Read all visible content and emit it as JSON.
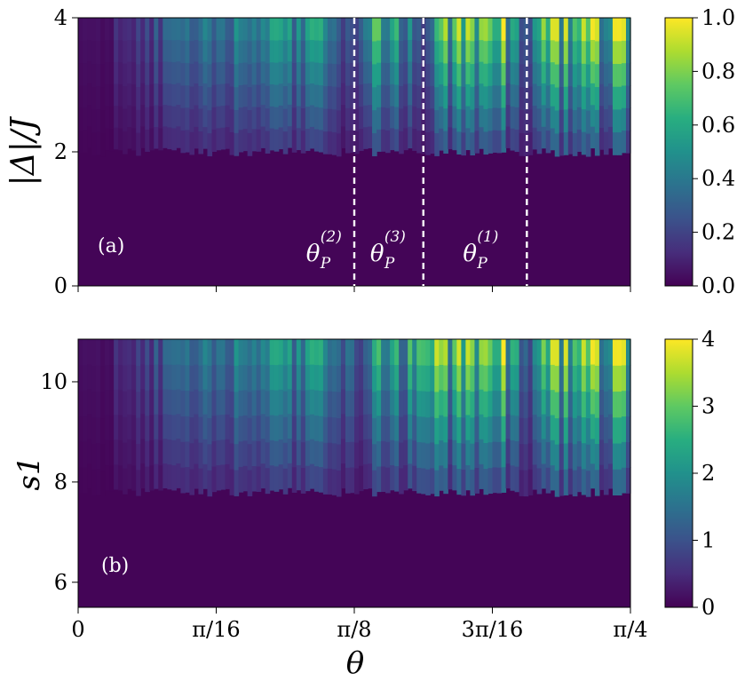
{
  "chart_data": [
    {
      "type": "heatmap",
      "panel_label": "(a)",
      "xlabel": "",
      "ylabel": "|Δ|/J",
      "xlim": [
        0,
        0.7854
      ],
      "ylim": [
        0,
        4
      ],
      "ytick_labels": [
        "0",
        "2",
        "4"
      ],
      "colorbar": {
        "range": [
          0.0,
          1.0
        ],
        "tick_labels": [
          "0.0",
          "0.2",
          "0.4",
          "0.6",
          "0.8",
          "1.0"
        ]
      },
      "colormap": "viridis",
      "dashed_lines_x": [
        0.3927,
        0.4909,
        0.6381
      ],
      "annotations": [
        {
          "base": "θ",
          "sub": "P",
          "sup": "(2)"
        },
        {
          "base": "θ",
          "sub": "P",
          "sup": "(3)"
        },
        {
          "base": "θ",
          "sub": "P",
          "sup": "(1)"
        }
      ],
      "threshold_y": 2.0,
      "approx_structure": "values ~0 below |Δ|/J ≈ 2; above it, vertical stripes rising to ~1.0, strongest near θ ≈ 0.32–0.39, 0.41–0.47, 0.50–0.63, 0.67–0.78"
    },
    {
      "type": "heatmap",
      "panel_label": "(b)",
      "xlabel": "θ",
      "ylabel": "s1",
      "xlim": [
        0,
        0.7854
      ],
      "ylim": [
        5.5,
        10.85
      ],
      "xtick_labels": [
        "0",
        "π/16",
        "π/8",
        "3π/16",
        "π/4"
      ],
      "ytick_labels": [
        "6",
        "8",
        "10"
      ],
      "colorbar": {
        "range": [
          0,
          4
        ],
        "tick_labels": [
          "0",
          "1",
          "2",
          "3",
          "4"
        ]
      },
      "colormap": "viridis",
      "approx_structure": "values ~0 below s1 ≈ 7.8; above it, vertical stripes rising to ~4, V-shaped dips near θ ≈ π/8 and θ ≈ 0.64"
    }
  ]
}
